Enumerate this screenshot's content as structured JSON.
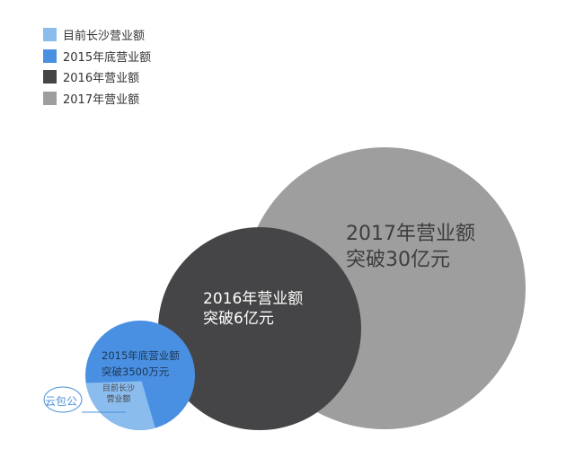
{
  "chart_data": {
    "type": "bubble",
    "title": "",
    "legend_position": "top-left",
    "grid": false,
    "series": [
      {
        "name": "目前长沙营业额",
        "color": "#8bbcee",
        "label_line1": "目前长沙",
        "label_line2": "营业额"
      },
      {
        "name": "2015年底营业额",
        "value": 3500,
        "unit": "万元",
        "color": "#4a90e2",
        "label_line1": "2015年底营业额",
        "label_line2": "突破3500万元"
      },
      {
        "name": "2016年营业额",
        "value": 60000,
        "unit": "万元",
        "color": "#454547",
        "label_line1": "2016年营业额",
        "label_line2": "突破6亿元"
      },
      {
        "name": "2017年营业额",
        "value": 300000,
        "unit": "万元",
        "color": "#9e9e9e",
        "label_line1": "2017年营业额",
        "label_line2": "突破30亿元"
      }
    ]
  },
  "brand": {
    "text": "云包公",
    "color": "#4a90d9"
  }
}
